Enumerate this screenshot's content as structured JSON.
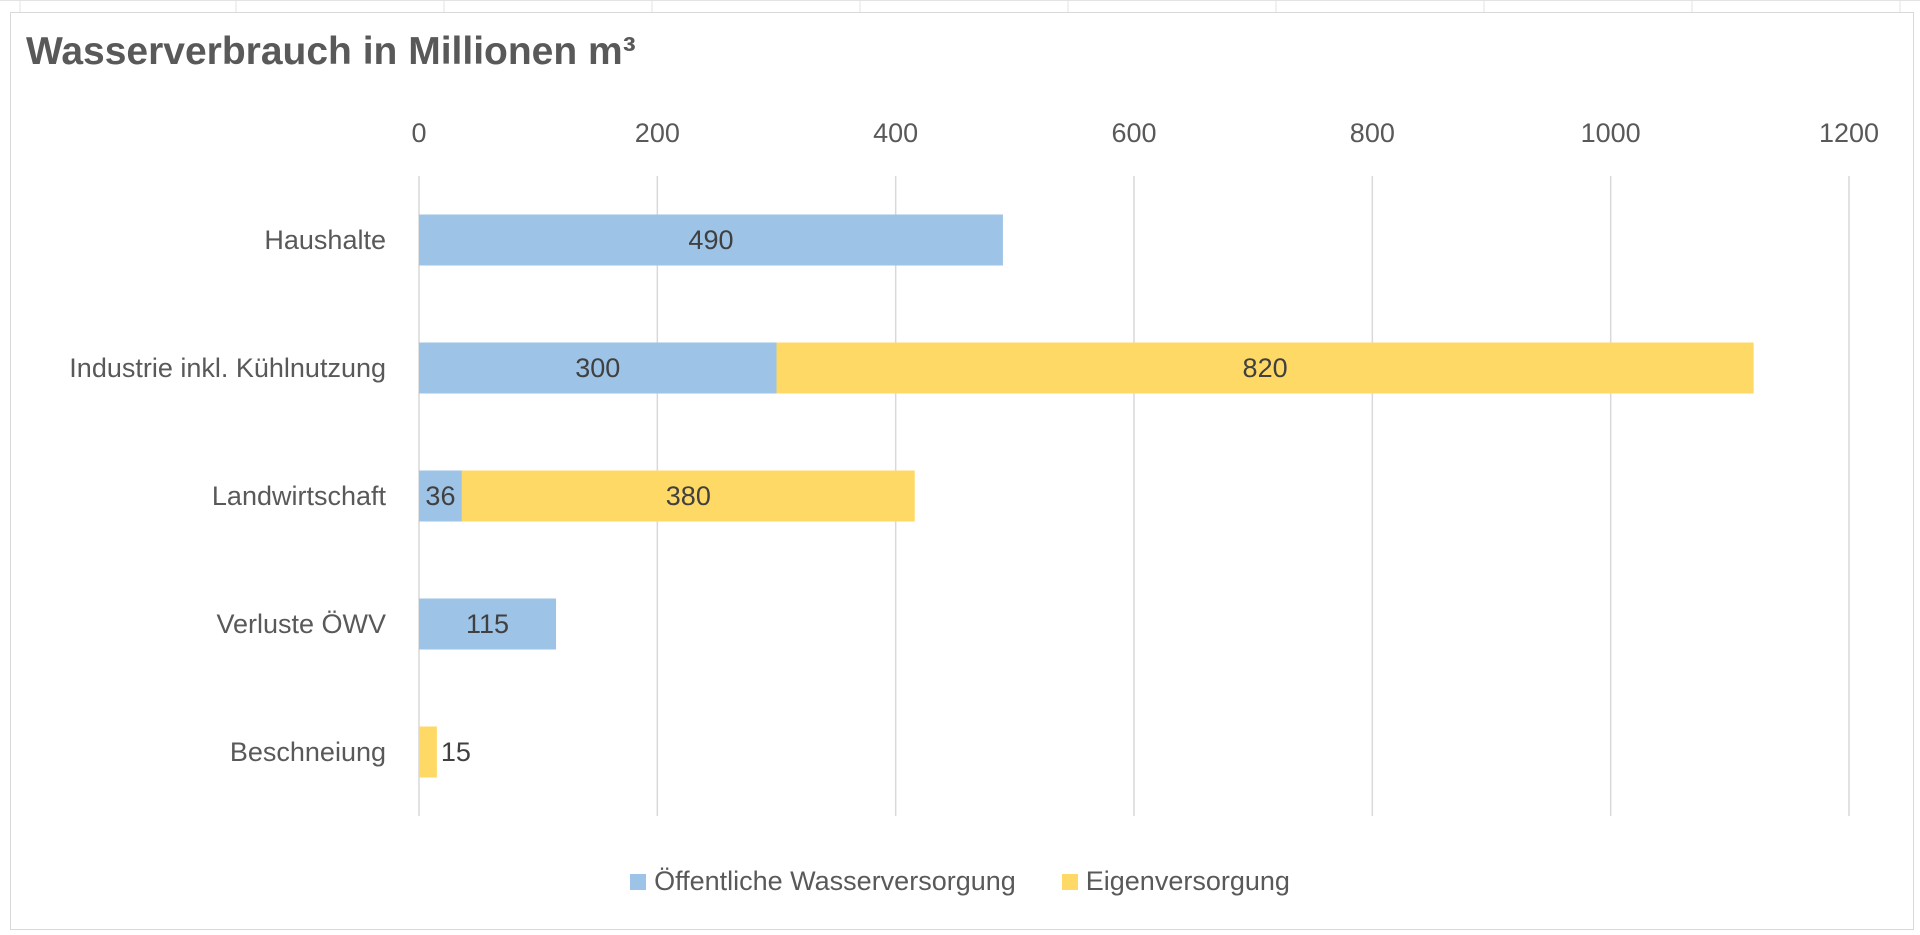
{
  "chart_data": {
    "type": "bar",
    "orientation": "horizontal",
    "stacked": true,
    "title": "Wasserverbrauch in Millionen m³",
    "categories": [
      "Haushalte",
      "Industrie inkl. Kühlnutzung",
      "Landwirtschaft",
      "Verluste ÖWV",
      "Beschneiung"
    ],
    "series": [
      {
        "name": "Öffentliche Wasserversorgung",
        "color": "#9dc3e6",
        "values": [
          490,
          300,
          36,
          115,
          null
        ]
      },
      {
        "name": "Eigenversorgung",
        "color": "#ffd966",
        "values": [
          null,
          820,
          380,
          null,
          15
        ]
      }
    ],
    "xlim": [
      0,
      1200
    ],
    "xticks": [
      0,
      200,
      400,
      600,
      800,
      1000,
      1200
    ],
    "xaxis_position": "top",
    "grid": true,
    "legend_position": "bottom",
    "xlabel": "",
    "ylabel": ""
  }
}
